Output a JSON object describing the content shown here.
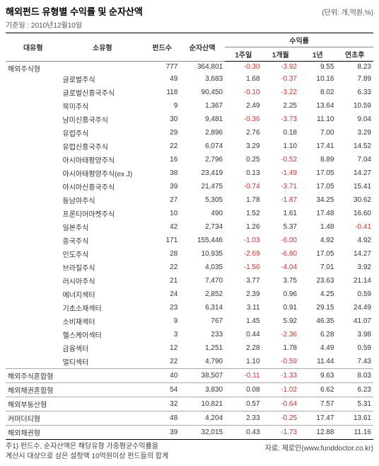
{
  "title": "해외펀드 유형별 수익률 및 순자산액",
  "unit_label": "(단위: 개,억원,%)",
  "date_label": "기준일 : 2010년12월10일",
  "headers": {
    "cat1": "대유형",
    "cat2": "소유형",
    "count": "펀드수",
    "nav": "순자산액",
    "returns_group": "수익률",
    "r1w": "1주일",
    "r1m": "1개월",
    "r1y": "1년",
    "rytd": "연초후"
  },
  "neg_color": "#d93030",
  "groups": [
    {
      "cat1": "해외주식형",
      "rows": [
        {
          "cat2": "",
          "count": 777,
          "nav": "364,801",
          "r1w": "-0.30",
          "r1m": "-3.92",
          "r1y": "9.55",
          "rytd": "8.23"
        },
        {
          "cat2": "글로벌주식",
          "count": 49,
          "nav": "3,683",
          "r1w": "1.68",
          "r1m": "-0.37",
          "r1y": "10.16",
          "rytd": "7.89"
        },
        {
          "cat2": "글로벌신흥국주식",
          "count": 118,
          "nav": "90,450",
          "r1w": "-0.10",
          "r1m": "-3.22",
          "r1y": "8.02",
          "rytd": "6.33"
        },
        {
          "cat2": "북미주식",
          "count": 9,
          "nav": "1,367",
          "r1w": "2.49",
          "r1m": "2.25",
          "r1y": "13.64",
          "rytd": "10.59"
        },
        {
          "cat2": "남미신흥국주식",
          "count": 30,
          "nav": "9,481",
          "r1w": "-0.36",
          "r1m": "-3.73",
          "r1y": "11.10",
          "rytd": "9.04"
        },
        {
          "cat2": "유럽주식",
          "count": 29,
          "nav": "2,896",
          "r1w": "2.76",
          "r1m": "0.18",
          "r1y": "7.00",
          "rytd": "3.29"
        },
        {
          "cat2": "유럽신흥국주식",
          "count": 22,
          "nav": "6,074",
          "r1w": "3.29",
          "r1m": "1.10",
          "r1y": "17.41",
          "rytd": "14.52"
        },
        {
          "cat2": "아시아태평양주식",
          "count": 16,
          "nav": "2,796",
          "r1w": "0.25",
          "r1m": "-0.52",
          "r1y": "8.89",
          "rytd": "7.04"
        },
        {
          "cat2": "아시아태평양주식(ex J)",
          "count": 38,
          "nav": "23,419",
          "r1w": "0.13",
          "r1m": "-1.49",
          "r1y": "17.05",
          "rytd": "14.27"
        },
        {
          "cat2": "아시아신흥국주식",
          "count": 39,
          "nav": "21,475",
          "r1w": "-0.74",
          "r1m": "-3.71",
          "r1y": "17.05",
          "rytd": "15.41"
        },
        {
          "cat2": "동남아주식",
          "count": 27,
          "nav": "5,305",
          "r1w": "1.78",
          "r1m": "-1.87",
          "r1y": "34.25",
          "rytd": "30.62"
        },
        {
          "cat2": "프론티어마켓주식",
          "count": 10,
          "nav": "490",
          "r1w": "1.52",
          "r1m": "1.61",
          "r1y": "17.48",
          "rytd": "16.60"
        },
        {
          "cat2": "일본주식",
          "count": 42,
          "nav": "2,734",
          "r1w": "1.26",
          "r1m": "5.37",
          "r1y": "1.48",
          "rytd": "-0.41"
        },
        {
          "cat2": "중국주식",
          "count": 171,
          "nav": "155,446",
          "r1w": "-1.03",
          "r1m": "-6.00",
          "r1y": "4.92",
          "rytd": "4.92"
        },
        {
          "cat2": "인도주식",
          "count": 28,
          "nav": "10,935",
          "r1w": "-2.69",
          "r1m": "-6.80",
          "r1y": "17.05",
          "rytd": "14.27"
        },
        {
          "cat2": "브라질주식",
          "count": 22,
          "nav": "4,035",
          "r1w": "-1.56",
          "r1m": "-4.04",
          "r1y": "7.01",
          "rytd": "3.92"
        },
        {
          "cat2": "러시아주식",
          "count": 21,
          "nav": "7,470",
          "r1w": "3.77",
          "r1m": "3.75",
          "r1y": "23.63",
          "rytd": "21.14"
        },
        {
          "cat2": "에너지섹터",
          "count": 24,
          "nav": "2,852",
          "r1w": "2.39",
          "r1m": "0.96",
          "r1y": "4.25",
          "rytd": "0.59"
        },
        {
          "cat2": "기초소재섹터",
          "count": 23,
          "nav": "6,314",
          "r1w": "3.11",
          "r1m": "0.91",
          "r1y": "29.15",
          "rytd": "24.49"
        },
        {
          "cat2": "소비재섹터",
          "count": 9,
          "nav": "767",
          "r1w": "1.45",
          "r1m": "5.92",
          "r1y": "46.35",
          "rytd": "41.07"
        },
        {
          "cat2": "헬스케어섹터",
          "count": 3,
          "nav": "233",
          "r1w": "0.44",
          "r1m": "-2.36",
          "r1y": "6.28",
          "rytd": "3.98"
        },
        {
          "cat2": "금융섹터",
          "count": 12,
          "nav": "1,251",
          "r1w": "2.28",
          "r1m": "1.78",
          "r1y": "4.49",
          "rytd": "0.59"
        },
        {
          "cat2": "멀티섹터",
          "count": 22,
          "nav": "4,790",
          "r1w": "1.10",
          "r1m": "-0.59",
          "r1y": "11.44",
          "rytd": "7.43"
        }
      ]
    },
    {
      "cat1": "해외주식혼합형",
      "rows": [
        {
          "cat2": "",
          "count": 40,
          "nav": "38,507",
          "r1w": "-0.11",
          "r1m": "-1.33",
          "r1y": "9.63",
          "rytd": "8.03"
        }
      ]
    },
    {
      "cat1": "해외채권혼합형",
      "rows": [
        {
          "cat2": "",
          "count": 54,
          "nav": "3,830",
          "r1w": "0.08",
          "r1m": "-1.02",
          "r1y": "6.62",
          "rytd": "6.23"
        }
      ]
    },
    {
      "cat1": "해외부동산형",
      "rows": [
        {
          "cat2": "",
          "count": 32,
          "nav": "10,821",
          "r1w": "0.57",
          "r1m": "-0.64",
          "r1y": "7.57",
          "rytd": "5.31"
        }
      ]
    },
    {
      "cat1": "커머더티형",
      "rows": [
        {
          "cat2": "",
          "count": 48,
          "nav": "4,204",
          "r1w": "2.33",
          "r1m": "-0.25",
          "r1y": "17.47",
          "rytd": "13.61"
        }
      ]
    },
    {
      "cat1": "해외채권형",
      "rows": [
        {
          "cat2": "",
          "count": 39,
          "nav": "32,015",
          "r1w": "0.43",
          "r1m": "-1.73",
          "r1y": "12.88",
          "rytd": "11.16"
        }
      ]
    }
  ],
  "footnote_l1": "주1) 펀드수, 순자산액은 해당유형 가중평균수익률을",
  "footnote_l2": "계산시 대상으로 삼은 설정액 10억원이상 펀드들의 합계",
  "source": "자료: 제로인(www.funddoctor.co.kr)"
}
